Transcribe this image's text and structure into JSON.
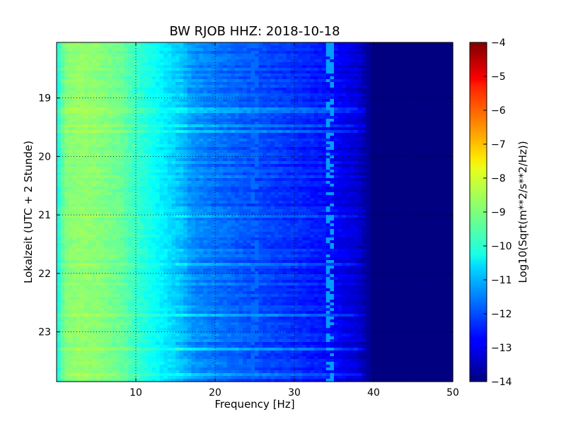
{
  "chart_data": {
    "type": "heatmap",
    "title": "BW RJOB HHZ: 2018-10-18",
    "xlabel": "Frequency [Hz]",
    "ylabel": "Lokalzeit (UTC + 2 Stunde)",
    "xlim": [
      0,
      50
    ],
    "ylim": [
      18.05,
      23.85
    ],
    "y_inverted": true,
    "x_ticks": [
      10,
      20,
      30,
      40,
      50
    ],
    "y_ticks": [
      19,
      20,
      21,
      22,
      23
    ],
    "grid": true,
    "colormap": "jet",
    "colorbar": {
      "label": "Log10(Sqrt(m**2/s**2/Hz))",
      "range": [
        -14,
        -4
      ],
      "ticks": [
        -4,
        -5,
        -6,
        -7,
        -8,
        -9,
        -10,
        -11,
        -12,
        -13,
        -14
      ]
    },
    "frequency_profile": {
      "frequency": [
        0,
        1,
        3,
        5,
        8,
        10,
        12,
        14,
        16,
        17,
        20,
        25,
        30,
        34,
        36,
        38,
        39,
        40,
        50
      ],
      "value": [
        -10.2,
        -9.0,
        -8.8,
        -8.9,
        -9.2,
        -9.7,
        -10.1,
        -10.5,
        -10.9,
        -11.3,
        -11.6,
        -12.0,
        -12.3,
        -12.6,
        -12.9,
        -13.2,
        -13.6,
        -14.0,
        -14.0
      ]
    },
    "spectral_lines": [
      {
        "frequency": 25.0,
        "value": -11.7
      },
      {
        "frequency": 34.5,
        "value": -11.2
      }
    ]
  }
}
